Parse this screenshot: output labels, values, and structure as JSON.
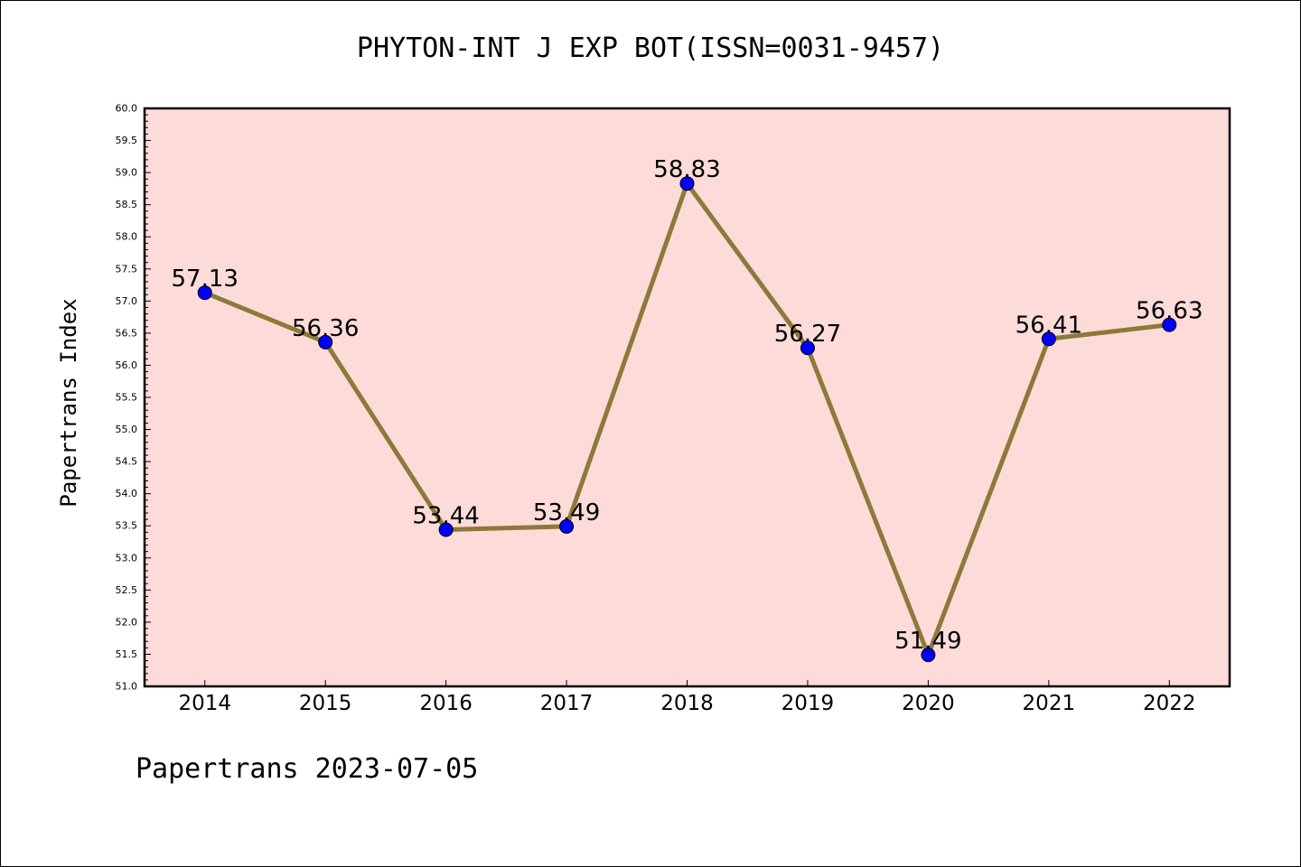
{
  "chart_data": {
    "type": "line",
    "title": "PHYTON-INT J EXP BOT(ISSN=0031-9457)",
    "xlabel": "",
    "ylabel": "Papertrans Index",
    "categories": [
      "2014",
      "2015",
      "2016",
      "2017",
      "2018",
      "2019",
      "2020",
      "2021",
      "2022"
    ],
    "series": [
      {
        "values": [
          57.13,
          56.36,
          53.44,
          53.49,
          58.83,
          56.27,
          51.49,
          56.41,
          56.63
        ],
        "labels": [
          "57.13",
          "56.36",
          "53.44",
          "53.49",
          "58.83",
          "56.27",
          "51.49",
          "56.41",
          "56.63"
        ]
      }
    ],
    "ylim": [
      51.0,
      60.0
    ],
    "yticks": [
      "51.0",
      "51.5",
      "52.0",
      "52.5",
      "53.0",
      "53.5",
      "54.0",
      "54.5",
      "55.0",
      "55.5",
      "56.0",
      "56.5",
      "57.0",
      "57.5",
      "58.0",
      "58.5",
      "59.0",
      "59.5",
      "60.0"
    ],
    "grid": false,
    "colors": {
      "plot_background": "#fddbd9",
      "line": "#8b7a3a",
      "marker": "#0000ff"
    }
  },
  "footer": "Papertrans 2023-07-05"
}
